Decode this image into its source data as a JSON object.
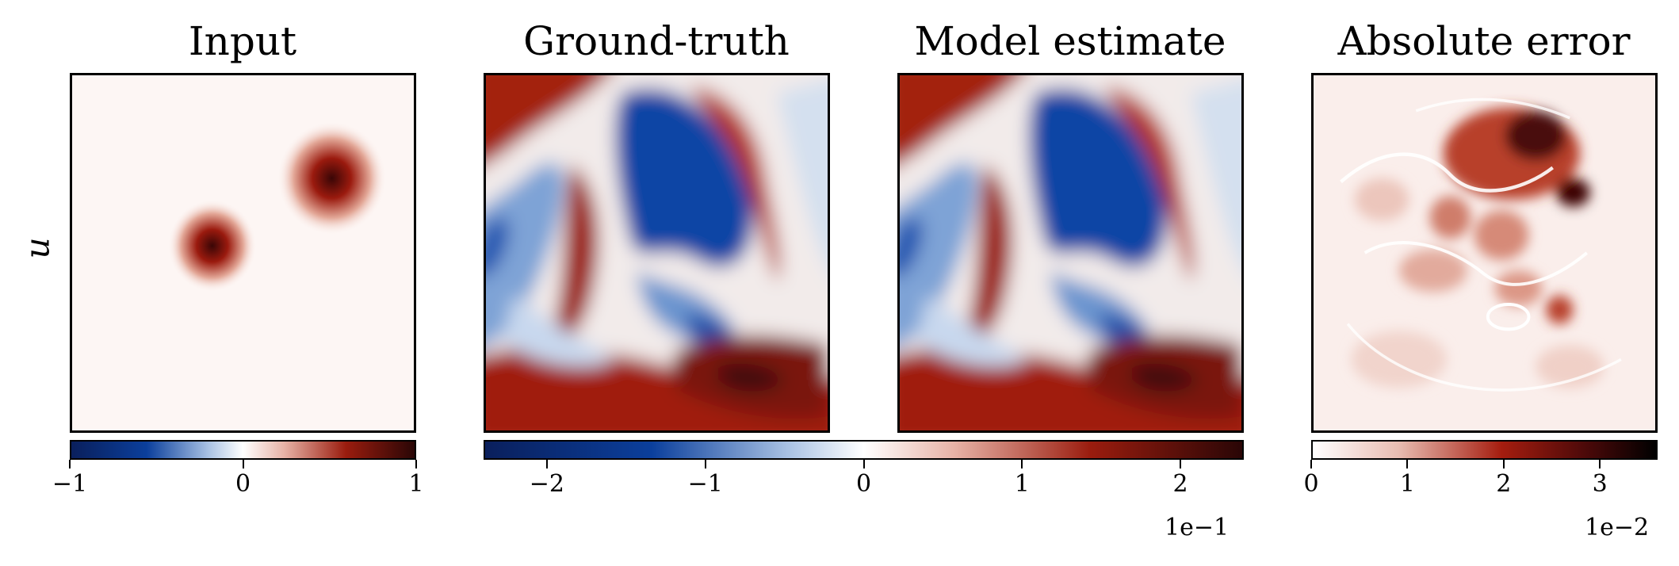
{
  "chart_data": [
    {
      "type": "heatmap",
      "title": "Input",
      "ylabel": "u",
      "colormap": "diverging blue-white-red",
      "colorbar": {
        "ticks": [
          -1,
          0,
          1
        ],
        "tick_labels": [
          "−1",
          "0",
          "1"
        ],
        "range": [
          -1,
          1
        ],
        "offset_text": ""
      },
      "features": [
        {
          "kind": "gaussian bump",
          "center": [
            -0.18,
            0.05
          ],
          "peak": 0.9
        },
        {
          "kind": "gaussian bump",
          "center": [
            0.53,
            0.44
          ],
          "peak": 0.95
        }
      ]
    },
    {
      "type": "heatmap",
      "title": "Ground-truth",
      "colormap": "diverging blue-white-red",
      "colorbar": {
        "ticks": [
          -2,
          -1,
          0,
          1,
          2
        ],
        "tick_labels": [
          "−2",
          "−1",
          "0",
          "1",
          "2"
        ],
        "range": [
          -2.4,
          2.4
        ],
        "offset_text": "1e−1",
        "shared_with": "Model estimate"
      }
    },
    {
      "type": "heatmap",
      "title": "Model estimate",
      "colormap": "diverging blue-white-red"
    },
    {
      "type": "heatmap",
      "title": "Absolute error",
      "colormap": "sequential white-red-black",
      "colorbar": {
        "ticks": [
          0,
          1,
          2,
          3
        ],
        "tick_labels": [
          "0",
          "1",
          "2",
          "3"
        ],
        "range": [
          0,
          3.6
        ],
        "offset_text": "1e−2"
      }
    }
  ],
  "colors": {
    "diverging": [
      "#0a1f5c",
      "#0b3f9c",
      "#a9c2e4",
      "#ffffff",
      "#e7b2a6",
      "#9a1c0e",
      "#2a0606"
    ],
    "sequential": [
      "#ffffff",
      "#e8bcb1",
      "#a51d0f",
      "#4a0909",
      "#000000"
    ]
  }
}
